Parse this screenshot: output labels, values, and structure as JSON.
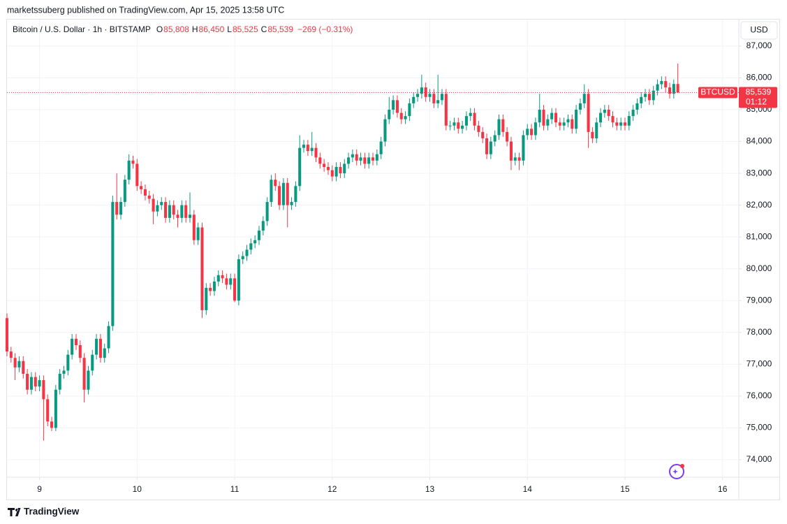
{
  "chart_data": {
    "type": "candlestick",
    "published": "marketssuberg published on TradingView.com, Apr 15, 2025 13:58 UTC",
    "symbol": "Bitcoin / U.S. Dollar · 1h · BITSTAMP",
    "ohlc_header": [
      {
        "label": "O",
        "value": "85,808"
      },
      {
        "label": "H",
        "value": "86,450"
      },
      {
        "label": "L",
        "value": "85,525"
      },
      {
        "label": "C",
        "value": "85,539"
      }
    ],
    "change": "−269 (−0.31%)",
    "currency": "USD",
    "ticker": "BTCUSD",
    "last_price": {
      "value": 85539,
      "label": "85,539"
    },
    "countdown": "01:12",
    "brand": "TradingView",
    "up_color": "#089981",
    "down_color": "#f23645",
    "grid": true,
    "xlim": [
      0,
      180
    ],
    "xticks": [
      {
        "value": 8,
        "label": "9"
      },
      {
        "value": 32,
        "label": "10"
      },
      {
        "value": 56,
        "label": "11"
      },
      {
        "value": 80,
        "label": "12"
      },
      {
        "value": 104,
        "label": "13"
      },
      {
        "value": 128,
        "label": "14"
      },
      {
        "value": 152,
        "label": "15"
      },
      {
        "value": 176,
        "label": "16"
      }
    ],
    "ylim": [
      73450,
      87240
    ],
    "yticks": [
      {
        "value": 74000,
        "label": "74,000"
      },
      {
        "value": 75000,
        "label": "75,000"
      },
      {
        "value": 76000,
        "label": "76,000"
      },
      {
        "value": 77000,
        "label": "77,000"
      },
      {
        "value": 78000,
        "label": "78,000"
      },
      {
        "value": 79000,
        "label": "79,000"
      },
      {
        "value": 80000,
        "label": "80,000"
      },
      {
        "value": 81000,
        "label": "81,000"
      },
      {
        "value": 82000,
        "label": "82,000"
      },
      {
        "value": 83000,
        "label": "83,000"
      },
      {
        "value": 84000,
        "label": "84,000"
      },
      {
        "value": 85000,
        "label": "85,000"
      },
      {
        "value": 86000,
        "label": "86,000"
      },
      {
        "value": 87000,
        "label": "87,000"
      }
    ],
    "open": [
      78450,
      77400,
      77200,
      76900,
      77100,
      76700,
      76200,
      76600,
      76300,
      76500,
      75900,
      75200,
      75000,
      76200,
      76700,
      76800,
      77300,
      77800,
      77600,
      77200,
      76200,
      76800,
      77300,
      77800,
      77200,
      77500,
      78200,
      82100,
      81700,
      82100,
      82800,
      83400,
      83300,
      82600,
      82500,
      82300,
      82200,
      81800,
      82000,
      82100,
      81600,
      82000,
      81700,
      81600,
      82000,
      81600,
      81700,
      80900,
      81300,
      78700,
      79400,
      79300,
      79600,
      79800,
      79700,
      79500,
      79700,
      79000,
      80300,
      80400,
      80600,
      80800,
      80900,
      81200,
      81500,
      82100,
      82800,
      82600,
      82000,
      82700,
      82000,
      82100,
      82600,
      83800,
      83900,
      83700,
      83800,
      83500,
      83300,
      83200,
      83100,
      82900,
      83200,
      83000,
      83300,
      83500,
      83600,
      83400,
      83500,
      83300,
      83500,
      83400,
      83600,
      84000,
      84700,
      85000,
      85300,
      84900,
      84700,
      84800,
      85200,
      85400,
      85500,
      85700,
      85400,
      85500,
      85200,
      85300,
      85500,
      84500,
      84500,
      84600,
      84400,
      84500,
      84800,
      84900,
      84500,
      84300,
      84100,
      83600,
      84000,
      84200,
      84700,
      84300,
      84000,
      83400,
      83500,
      83400,
      84200,
      84400,
      84200,
      84600,
      85000,
      84500,
      84700,
      84900,
      84600,
      84500,
      84600,
      84700,
      84400,
      85000,
      85200,
      85500,
      84300,
      84100,
      84600,
      84900,
      85000,
      84800,
      84600,
      84500,
      84600,
      84500,
      84800,
      85000,
      85200,
      85400,
      85500,
      85300,
      85600,
      85800,
      85900,
      85700,
      85500,
      85808
    ],
    "high": [
      78600,
      77550,
      77350,
      77250,
      77250,
      76850,
      76750,
      76750,
      76650,
      76650,
      76050,
      75350,
      76350,
      76850,
      76950,
      77450,
      77950,
      77950,
      77750,
      77350,
      76950,
      77450,
      77950,
      77950,
      77650,
      78350,
      82300,
      83000,
      82250,
      82950,
      83600,
      83550,
      83450,
      82750,
      82650,
      82450,
      82350,
      82150,
      82250,
      82250,
      82150,
      82150,
      81850,
      82150,
      82150,
      82400,
      81850,
      81450,
      81450,
      79550,
      79550,
      79750,
      79950,
      79950,
      79850,
      79850,
      79850,
      80450,
      80550,
      80750,
      80950,
      81050,
      81350,
      81650,
      82250,
      82950,
      83000,
      82750,
      82850,
      82850,
      82250,
      82750,
      84200,
      84050,
      84050,
      84300,
      83950,
      83650,
      83450,
      83350,
      83250,
      83350,
      83350,
      83450,
      83650,
      83750,
      83750,
      83650,
      83650,
      83650,
      83650,
      83750,
      84150,
      84850,
      85400,
      85450,
      85450,
      85050,
      84950,
      85350,
      85550,
      85650,
      86100,
      85850,
      85650,
      85650,
      86100,
      85650,
      85650,
      84650,
      84750,
      84750,
      84650,
      84950,
      85050,
      85050,
      84650,
      84450,
      84250,
      84150,
      84350,
      84850,
      84850,
      84450,
      84150,
      83650,
      83650,
      84350,
      84550,
      84550,
      84750,
      85500,
      85150,
      84850,
      85050,
      85050,
      84750,
      84750,
      84850,
      84850,
      85150,
      85350,
      85800,
      85650,
      84450,
      84750,
      85050,
      85150,
      85150,
      84950,
      84750,
      84750,
      84750,
      84950,
      85150,
      85350,
      85550,
      85650,
      85650,
      85750,
      85950,
      86050,
      86050,
      85850,
      85950,
      86450
    ],
    "low": [
      77250,
      77050,
      76500,
      76750,
      76550,
      76050,
      76050,
      76150,
      76150,
      74600,
      75050,
      74900,
      74900,
      76050,
      76550,
      76650,
      77150,
      77450,
      77050,
      75800,
      76050,
      76650,
      77150,
      77050,
      77050,
      77350,
      78050,
      81550,
      81550,
      81950,
      82650,
      83150,
      82450,
      82350,
      82150,
      82050,
      81400,
      81650,
      81850,
      81450,
      81450,
      81550,
      81300,
      81450,
      81450,
      81450,
      80750,
      80750,
      78450,
      78550,
      79150,
      79150,
      79450,
      79550,
      79350,
      79350,
      78950,
      78850,
      80150,
      80250,
      80450,
      80650,
      80750,
      81050,
      81350,
      81950,
      82450,
      81850,
      81850,
      81300,
      81850,
      81950,
      82450,
      83650,
      83550,
      83550,
      83350,
      83150,
      83050,
      82950,
      82750,
      82750,
      82850,
      82850,
      83150,
      83350,
      83250,
      83250,
      83150,
      83150,
      83250,
      83250,
      83450,
      83850,
      84550,
      84850,
      84750,
      84550,
      84550,
      84650,
      85050,
      85250,
      85350,
      85250,
      85250,
      85050,
      85050,
      85150,
      84350,
      84350,
      84350,
      84250,
      84250,
      84350,
      84650,
      84350,
      84150,
      83950,
      83450,
      83450,
      83850,
      84050,
      84150,
      83850,
      83100,
      83250,
      83100,
      83250,
      84050,
      84050,
      84050,
      84450,
      84350,
      84350,
      84550,
      84450,
      84350,
      84350,
      84450,
      84250,
      84250,
      84850,
      85050,
      83800,
      83950,
      83950,
      84450,
      84750,
      84650,
      84450,
      84350,
      84350,
      84350,
      84350,
      84650,
      84850,
      85050,
      85250,
      85150,
      85150,
      85450,
      85650,
      85550,
      85350,
      85350,
      85525
    ],
    "close": [
      77400,
      77200,
      76900,
      77100,
      76700,
      76200,
      76600,
      76300,
      76500,
      75900,
      75200,
      75000,
      76200,
      76700,
      76800,
      77300,
      77800,
      77600,
      77200,
      76200,
      76800,
      77300,
      77800,
      77200,
      77500,
      78200,
      82100,
      81700,
      82100,
      82800,
      83400,
      83300,
      82600,
      82500,
      82300,
      82200,
      81800,
      82000,
      82100,
      81600,
      82000,
      81700,
      81600,
      82000,
      81600,
      81700,
      80900,
      81300,
      78700,
      79400,
      79300,
      79600,
      79800,
      79700,
      79500,
      79700,
      79000,
      80300,
      80400,
      80600,
      80800,
      80900,
      81200,
      81500,
      82100,
      82800,
      82600,
      82000,
      82700,
      82000,
      82100,
      82600,
      83800,
      83900,
      83700,
      83800,
      83500,
      83300,
      83200,
      83100,
      82900,
      83200,
      83000,
      83300,
      83500,
      83600,
      83400,
      83500,
      83300,
      83500,
      83400,
      83600,
      84000,
      84700,
      85000,
      85300,
      84900,
      84700,
      84800,
      85200,
      85400,
      85500,
      85700,
      85400,
      85500,
      85200,
      85300,
      85500,
      84500,
      84500,
      84600,
      84400,
      84500,
      84800,
      84900,
      84500,
      84300,
      84100,
      83600,
      84000,
      84200,
      84700,
      84300,
      84000,
      83400,
      83500,
      83400,
      84200,
      84400,
      84200,
      84600,
      85000,
      84500,
      84700,
      84900,
      84600,
      84500,
      84600,
      84700,
      84400,
      85000,
      85200,
      85500,
      84300,
      84100,
      84600,
      84900,
      85000,
      84800,
      84600,
      84500,
      84600,
      84500,
      84800,
      85000,
      85200,
      85400,
      85500,
      85300,
      85600,
      85800,
      85900,
      85700,
      85500,
      85808,
      85539
    ]
  }
}
